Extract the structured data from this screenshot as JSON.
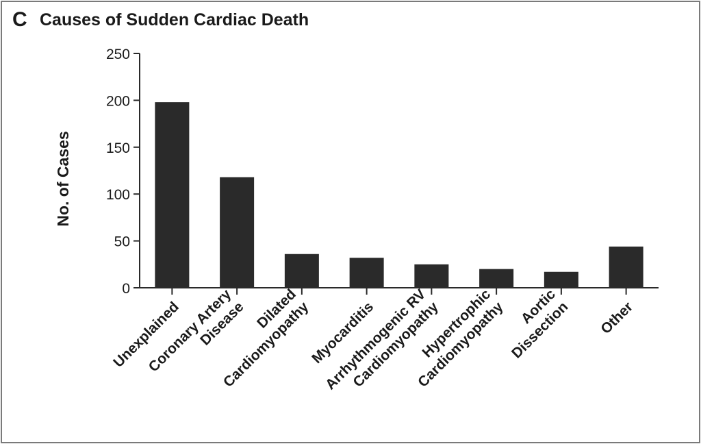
{
  "panel": {
    "letter": "C"
  },
  "chart_data": {
    "type": "bar",
    "title": "Causes of Sudden Cardiac Death",
    "xlabel": "",
    "ylabel": "No. of Cases",
    "ylim": [
      0,
      250
    ],
    "yticks": [
      0,
      50,
      100,
      150,
      200,
      250
    ],
    "categories": [
      [
        "Unexplained"
      ],
      [
        "Coronary Artery",
        "Disease"
      ],
      [
        "Dilated",
        "Cardiomyopathy"
      ],
      [
        "Myocarditis"
      ],
      [
        "Arrhythmogenic RV",
        "Cardiomyopathy"
      ],
      [
        "Hypertrophic",
        "Cardiomyopathy"
      ],
      [
        "Aortic",
        "Dissection"
      ],
      [
        "Other"
      ]
    ],
    "values": [
      198,
      118,
      36,
      32,
      25,
      20,
      17,
      44
    ],
    "bar_color": "#2a2a2a",
    "grid": false,
    "legend": "none"
  }
}
